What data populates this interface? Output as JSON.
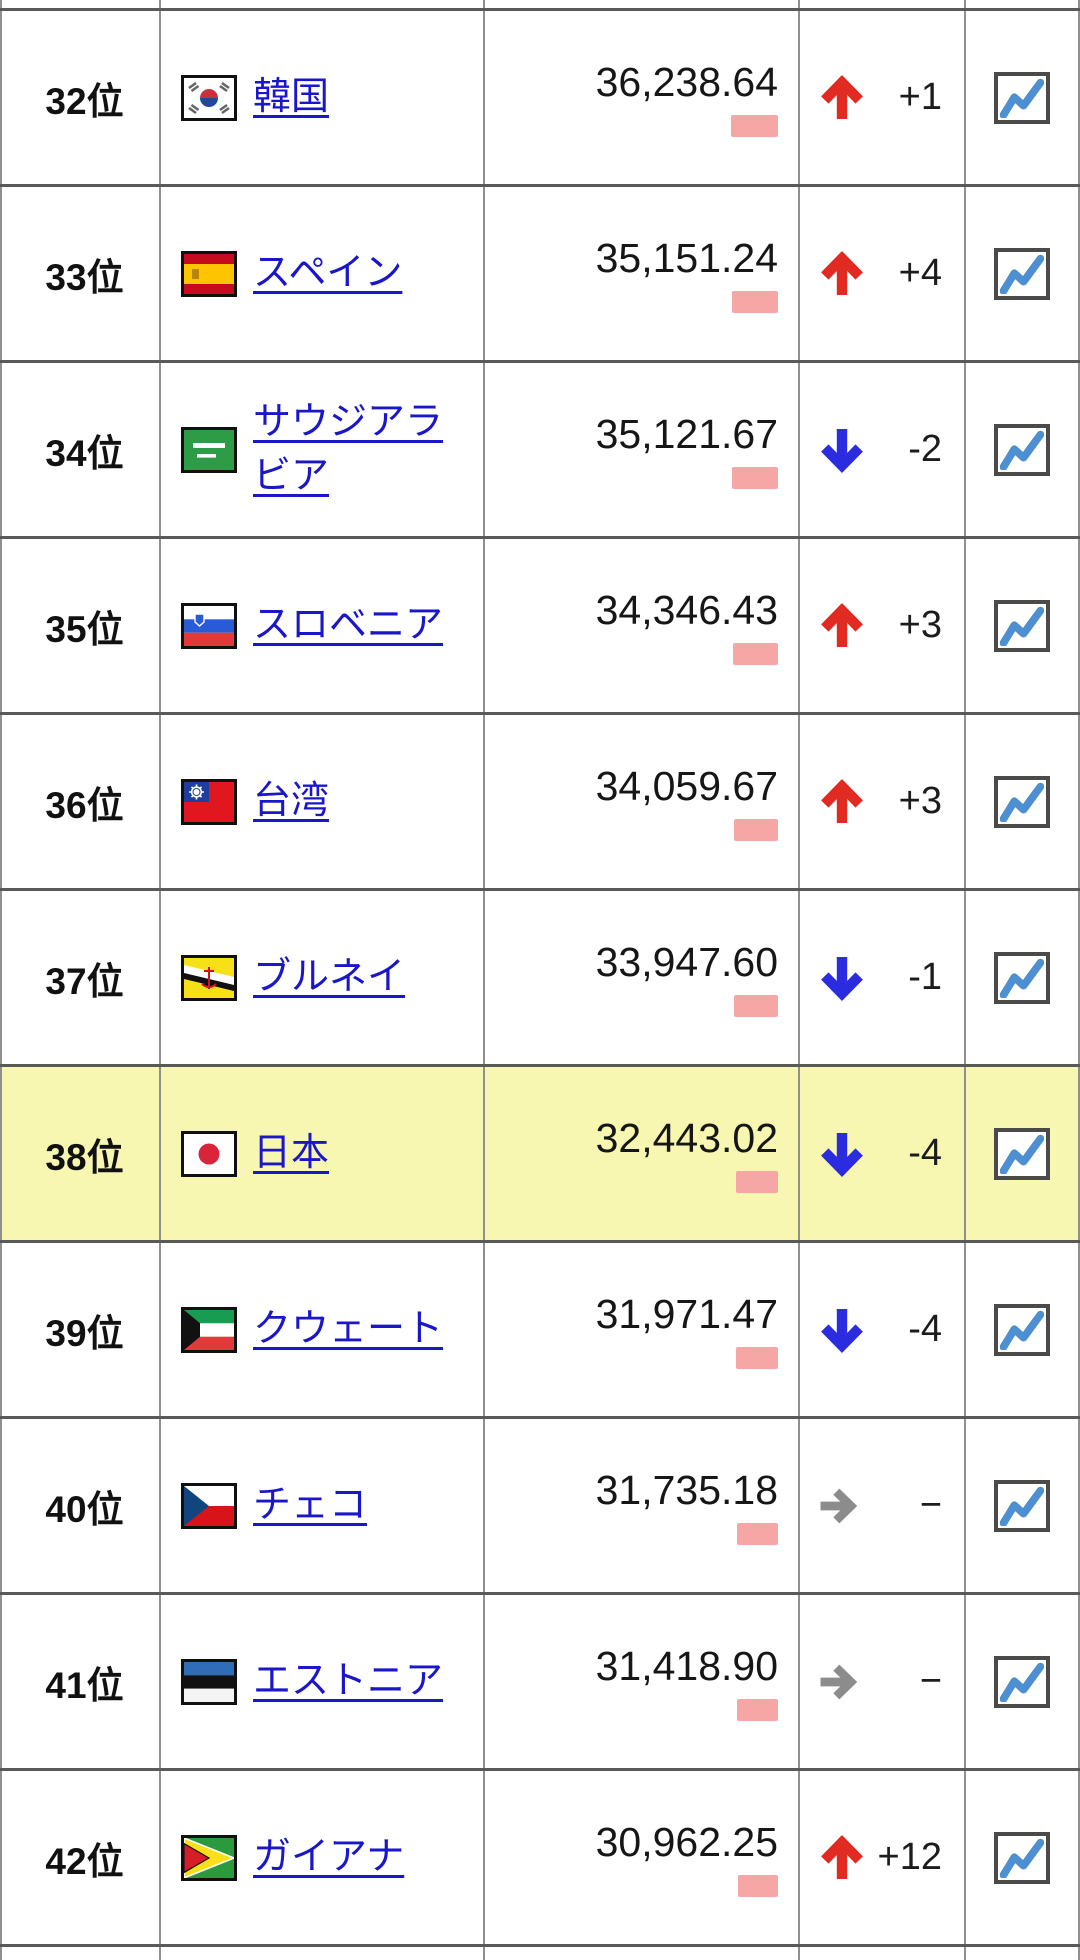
{
  "table": {
    "rows": [
      {
        "rank": "32位",
        "country": "韓国",
        "flag": "kr",
        "value": "36,238.64",
        "direction": "up",
        "change": "+1",
        "highlighted": false
      },
      {
        "rank": "33位",
        "country": "スペイン",
        "flag": "es",
        "value": "35,151.24",
        "direction": "up",
        "change": "+4",
        "highlighted": false
      },
      {
        "rank": "34位",
        "country": "サウジアラビア",
        "flag": "sa",
        "value": "35,121.67",
        "direction": "down",
        "change": "-2",
        "highlighted": false
      },
      {
        "rank": "35位",
        "country": "スロベニア",
        "flag": "si",
        "value": "34,346.43",
        "direction": "up",
        "change": "+3",
        "highlighted": false
      },
      {
        "rank": "36位",
        "country": "台湾",
        "flag": "tw",
        "value": "34,059.67",
        "direction": "up",
        "change": "+3",
        "highlighted": false
      },
      {
        "rank": "37位",
        "country": "ブルネイ",
        "flag": "bn",
        "value": "33,947.60",
        "direction": "down",
        "change": "-1",
        "highlighted": false
      },
      {
        "rank": "38位",
        "country": "日本",
        "flag": "jp",
        "value": "32,443.02",
        "direction": "down",
        "change": "-4",
        "highlighted": true
      },
      {
        "rank": "39位",
        "country": "クウェート",
        "flag": "kw",
        "value": "31,971.47",
        "direction": "down",
        "change": "-4",
        "highlighted": false
      },
      {
        "rank": "40位",
        "country": "チェコ",
        "flag": "cz",
        "value": "31,735.18",
        "direction": "flat",
        "change": "−",
        "highlighted": false
      },
      {
        "rank": "41位",
        "country": "エストニア",
        "flag": "ee",
        "value": "31,418.90",
        "direction": "flat",
        "change": "−",
        "highlighted": false
      },
      {
        "rank": "42位",
        "country": "ガイアナ",
        "flag": "gy",
        "value": "30,962.25",
        "direction": "up",
        "change": "+12",
        "highlighted": false
      }
    ],
    "icons": {
      "up": "up-arrow-icon",
      "down": "down-arrow-icon",
      "flat": "right-arrow-icon",
      "trend": "line-chart-icon"
    },
    "colors": {
      "up_arrow": "#e02a22",
      "down_arrow": "#2b2bdf",
      "flat_arrow": "#8c8c8c",
      "value_bar": "#f7a6a6",
      "highlight_row": "#f7f7b2",
      "link": "#1a16c9",
      "chart_line": "#4d8fd1"
    }
  }
}
